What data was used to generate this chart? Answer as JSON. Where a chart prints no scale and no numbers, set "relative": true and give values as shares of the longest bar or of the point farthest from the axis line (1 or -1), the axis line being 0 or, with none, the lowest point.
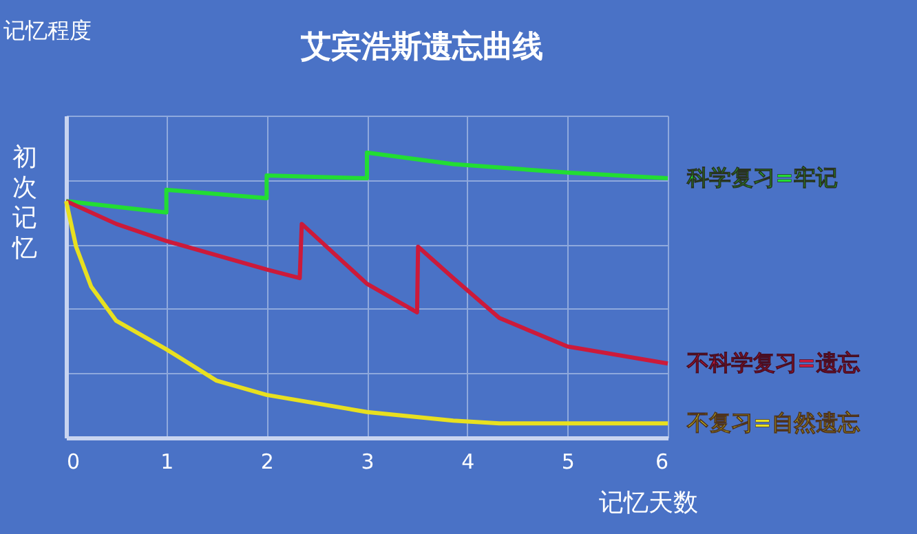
{
  "chart_data": {
    "type": "line",
    "title": "艾宾浩斯遗忘曲线",
    "xlabel": "记忆天数",
    "ylabel": "记忆程度",
    "relative": true,
    "xlim": [
      0,
      6
    ],
    "xticks": [
      0,
      1,
      2,
      3,
      4,
      5,
      6
    ],
    "grid": true,
    "marker": "none",
    "line_style": "solid",
    "annotations": [
      {
        "text": "初次记忆",
        "x": 0,
        "y": 0.83
      }
    ],
    "series": [
      {
        "name": "科学复习=牢记",
        "color": "#22dd33",
        "x": [
          0,
          1,
          1,
          2,
          2,
          3,
          3,
          3.86,
          5,
          6
        ],
        "values": [
          0.83,
          0.79,
          0.87,
          0.84,
          0.92,
          0.91,
          1,
          0.96,
          0.93,
          0.91
        ]
      },
      {
        "name": "不科学复习=遗忘",
        "color": "#cc1a3a",
        "x": [
          0,
          0.5,
          1,
          2,
          2.33,
          2.35,
          3,
          3.5,
          3.51,
          3.86,
          4.32,
          5,
          6
        ],
        "values": [
          0.83,
          0.75,
          0.69,
          0.59,
          0.56,
          0.75,
          0.54,
          0.44,
          0.67,
          0.56,
          0.42,
          0.32,
          0.26
        ]
      },
      {
        "name": "不复习=自然遗忘",
        "color": "#e8e020",
        "x": [
          0,
          0.1,
          0.25,
          0.5,
          1,
          1.5,
          2,
          3,
          3.86,
          4.32,
          6
        ],
        "values": [
          0.83,
          0.67,
          0.53,
          0.41,
          0.31,
          0.2,
          0.15,
          0.09,
          0.06,
          0.05,
          0.05
        ]
      }
    ]
  }
}
